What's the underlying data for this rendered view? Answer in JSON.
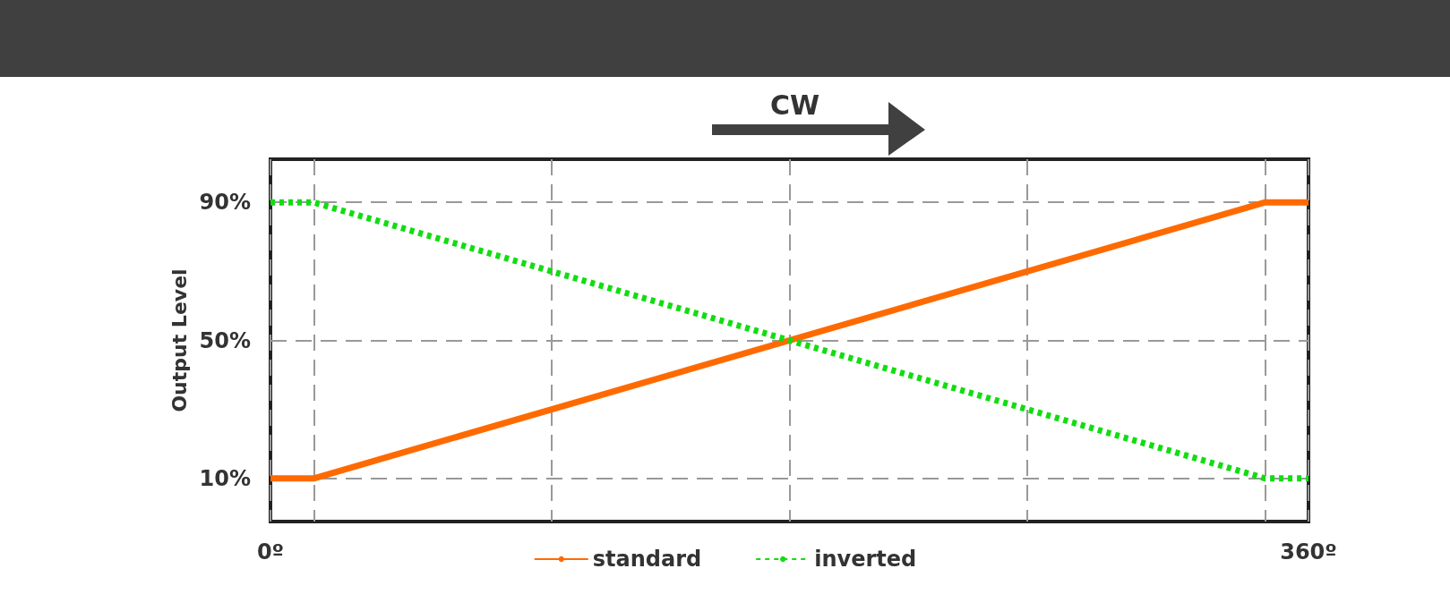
{
  "chart_data": {
    "type": "line",
    "ylabel": "Output Level",
    "annotations": [
      "CW"
    ],
    "xlim": [
      0,
      360
    ],
    "xticks": [
      {
        "value": 0,
        "label": "0º"
      },
      {
        "value": 15,
        "label": null
      },
      {
        "value": 97.5,
        "label": null
      },
      {
        "value": 180,
        "label": null
      },
      {
        "value": 262.5,
        "label": null
      },
      {
        "value": 345,
        "label": null
      },
      {
        "value": 360,
        "label": "360º"
      }
    ],
    "ylim": [
      -2.5,
      102.5
    ],
    "yticks": [
      {
        "value": 10,
        "label": "10%"
      },
      {
        "value": 50,
        "label": "50%"
      },
      {
        "value": 90,
        "label": "90%"
      }
    ],
    "grid": true,
    "legend": "bottom",
    "marker": "none",
    "series": [
      {
        "name": "standard",
        "color": "#ff6a00",
        "line_style": "solid",
        "x": [
          0,
          15,
          345,
          360
        ],
        "values": [
          10,
          10,
          90,
          90
        ]
      },
      {
        "name": "inverted",
        "color": "#11dd11",
        "line_style": "dotted",
        "x": [
          0,
          15,
          345,
          360
        ],
        "values": [
          90,
          90,
          10,
          10
        ]
      }
    ]
  }
}
